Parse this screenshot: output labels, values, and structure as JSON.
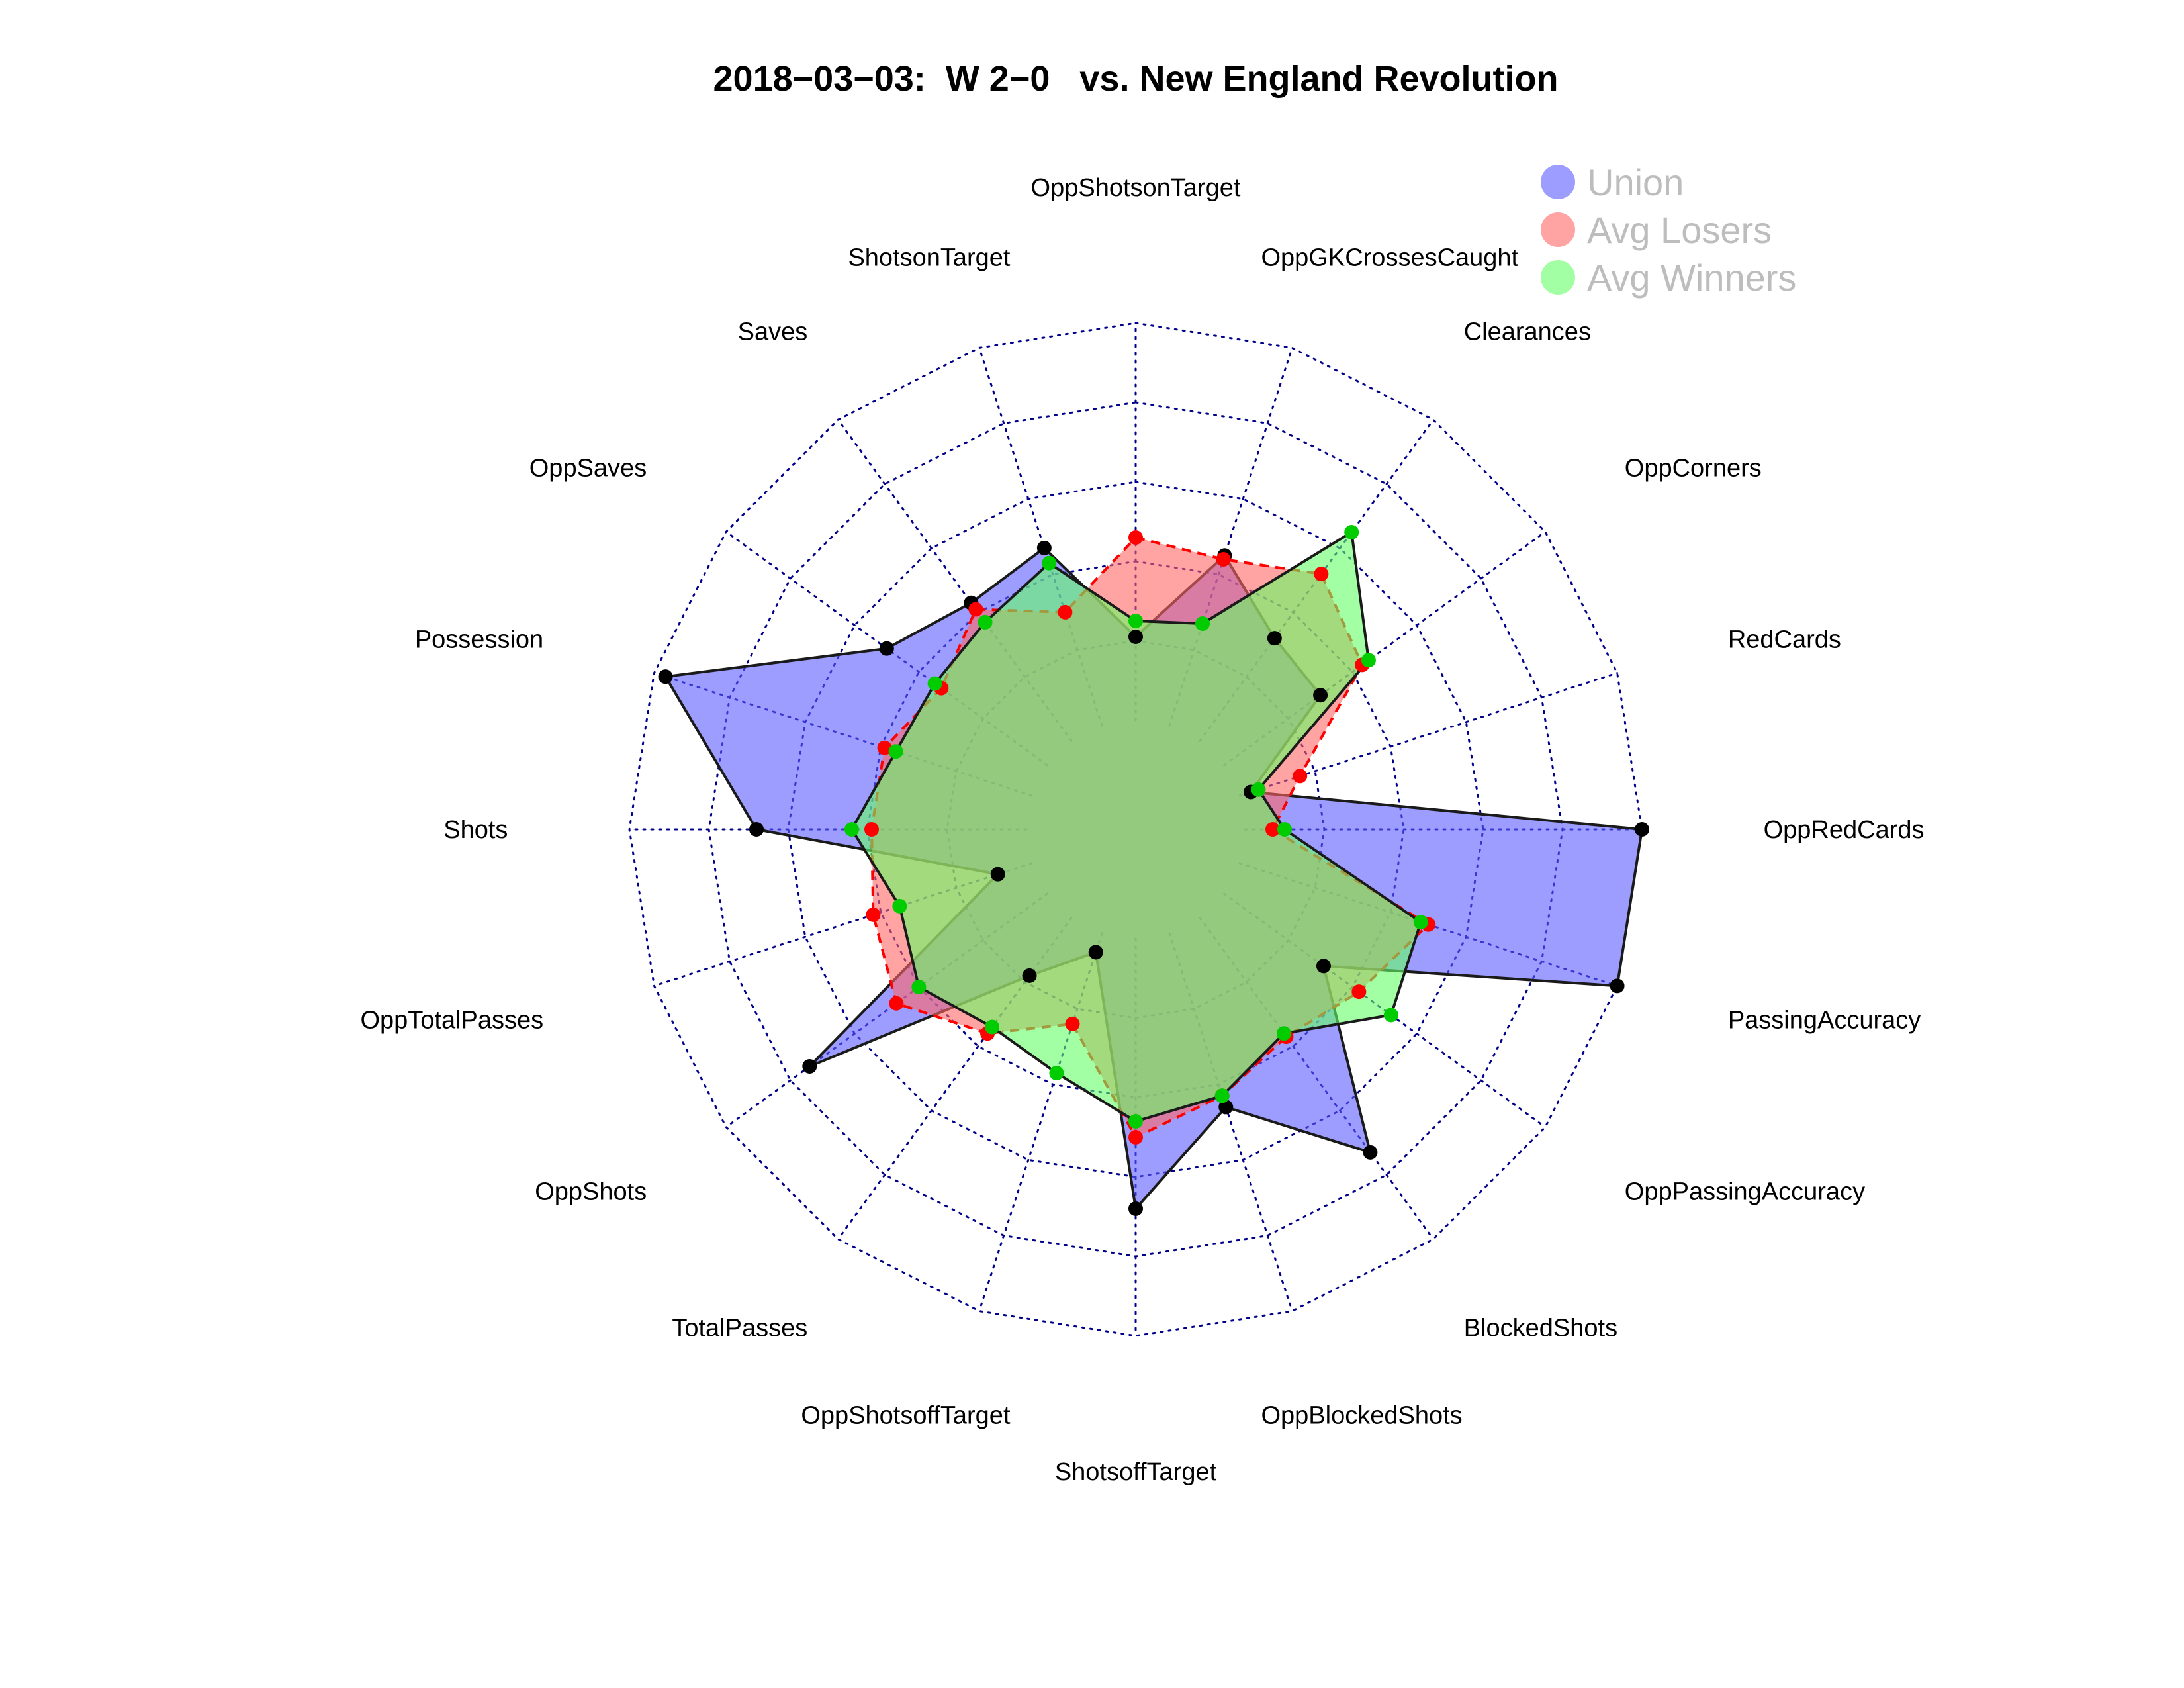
{
  "chart_data": {
    "type": "radar",
    "title": "2018−03−03:  W 2−0   vs. New England Revolution",
    "axes": [
      "OppShotsonTarget",
      "OppGKCrossesCaught",
      "Clearances",
      "OppCorners",
      "RedCards",
      "OppRedCards",
      "PassingAccuracy",
      "OppPassingAccuracy",
      "BlockedShots",
      "OppBlockedShots",
      "ShotsoffTarget",
      "OppShotsoffTarget",
      "TotalPasses",
      "OppShots",
      "OppTotalPasses",
      "Shots",
      "Possession",
      "OppSaves",
      "Saves",
      "ShotsonTarget"
    ],
    "rlim": [
      0,
      1
    ],
    "grid_rings": 5,
    "grid": true,
    "legend_position": "top-right",
    "series": [
      {
        "name": "Union",
        "color": "#5c5cff",
        "line": "solid",
        "marker_color": "#000000",
        "values": [
          0.21,
          0.45,
          0.32,
          0.3,
          0.03,
          1.0,
          1.0,
          0.31,
          0.73,
          0.46,
          0.68,
          0.05,
          0.18,
          0.74,
          0.09,
          0.68,
          0.97,
          0.5,
          0.43,
          0.47
        ]
      },
      {
        "name": "Avg Losers",
        "color": "#ff6666",
        "line": "dashed",
        "marker_color": "#ff0000",
        "values": [
          0.46,
          0.44,
          0.52,
          0.43,
          0.16,
          0.07,
          0.5,
          0.42,
          0.37,
          0.43,
          0.5,
          0.24,
          0.36,
          0.47,
          0.42,
          0.39,
          0.39,
          0.33,
          0.41,
          0.3
        ]
      },
      {
        "name": "Avg Winners",
        "color": "#66ff66",
        "line": "solid",
        "marker_color": "#00cc00",
        "values": [
          0.25,
          0.27,
          0.65,
          0.45,
          0.05,
          0.1,
          0.48,
          0.52,
          0.36,
          0.43,
          0.46,
          0.37,
          0.34,
          0.4,
          0.35,
          0.44,
          0.36,
          0.35,
          0.37,
          0.43
        ]
      }
    ]
  }
}
